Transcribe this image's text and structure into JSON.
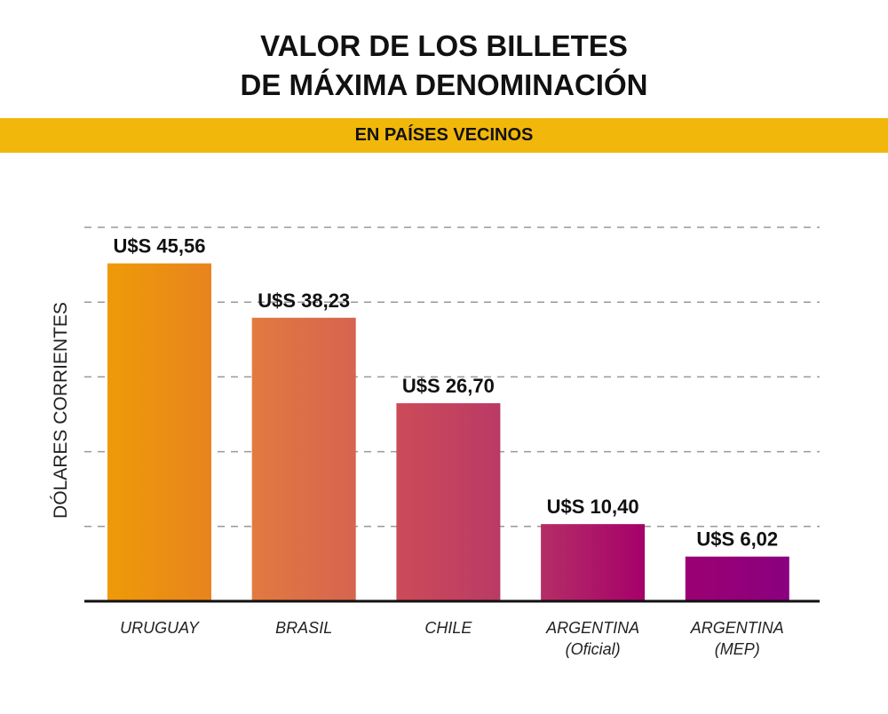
{
  "title_line1": "VALOR DE LOS BILLETES",
  "title_line2": "DE MÁXIMA DENOMINACIÓN",
  "subtitle": "EN PAÍSES VECINOS",
  "chart_data": {
    "type": "bar",
    "title": "VALOR DE LOS BILLETES DE MÁXIMA DENOMINACIÓN",
    "subtitle": "EN PAÍSES VECINOS",
    "ylabel": "DÓLARES CORRIENTES",
    "xlabel": "",
    "ylim": [
      0,
      50
    ],
    "gridlines": [
      10,
      20,
      30,
      40,
      50
    ],
    "grid": true,
    "categories": [
      [
        "URUGUAY"
      ],
      [
        "BRASIL"
      ],
      [
        "CHILE"
      ],
      [
        "ARGENTINA",
        "(Oficial)"
      ],
      [
        "ARGENTINA",
        "(MEP)"
      ]
    ],
    "values": [
      45.56,
      38.23,
      26.7,
      10.4,
      6.02
    ],
    "data_labels": [
      "U$S 45,56",
      "U$S 38,23",
      "U$S 26,70",
      "U$S 10,40",
      "U$S 6,02"
    ],
    "bar_colors": [
      [
        "#EE9A08",
        "#E8841E"
      ],
      [
        "#E27A40",
        "#D6644F"
      ],
      [
        "#CC4B58",
        "#BA3A66"
      ],
      [
        "#B42E66",
        "#A6006A"
      ],
      [
        "#9C0072",
        "#8A0080"
      ]
    ]
  },
  "colors": {
    "band": "#F2B70B",
    "grid": "#999999",
    "axis": "#111111"
  }
}
